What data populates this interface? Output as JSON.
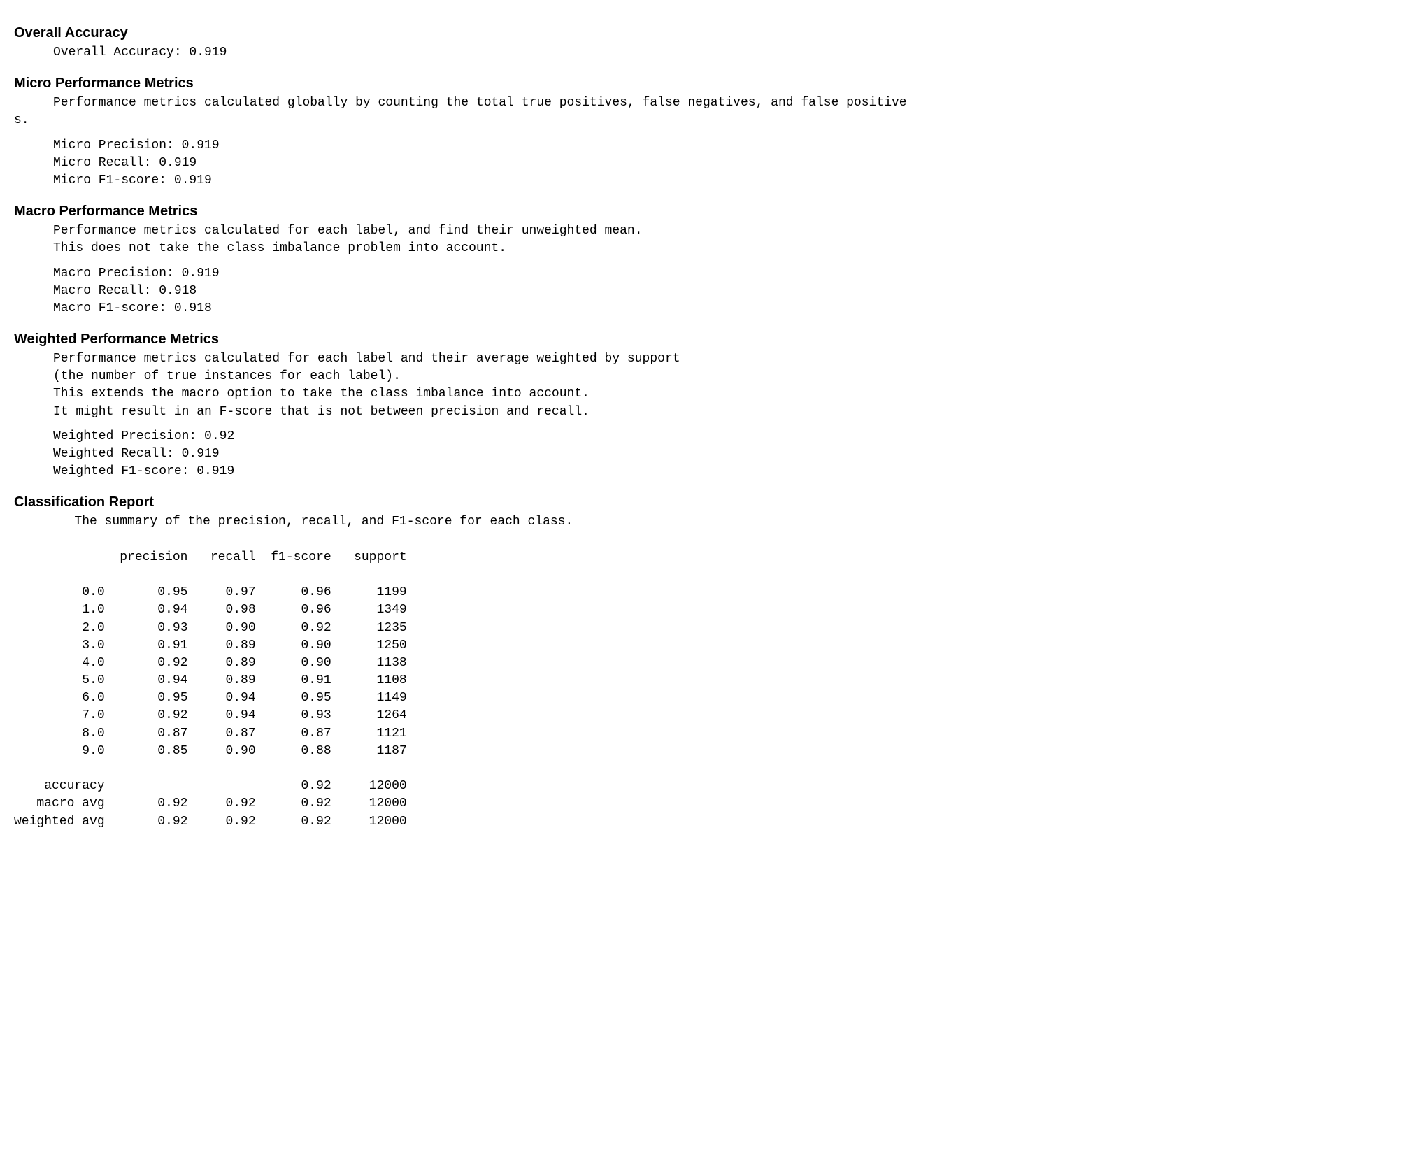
{
  "overall": {
    "heading": "Overall Accuracy",
    "line": "Overall Accuracy: 0.919"
  },
  "micro": {
    "heading": "Micro Performance Metrics",
    "desc": "Performance metrics calculated globally by counting the total true positives, false negatives, and false positive",
    "desc_wrap": "s.",
    "precision": "Micro Precision: 0.919",
    "recall": "Micro Recall: 0.919",
    "f1": "Micro F1-score: 0.919"
  },
  "macro": {
    "heading": "Macro Performance Metrics",
    "desc1": "Performance metrics calculated for each label, and find their unweighted mean.",
    "desc2": "This does not take the class imbalance problem into account.",
    "precision": "Macro Precision: 0.919",
    "recall": "Macro Recall: 0.918",
    "f1": "Macro F1-score: 0.918"
  },
  "weighted": {
    "heading": "Weighted Performance Metrics",
    "desc1": "Performance metrics calculated for each label and their average weighted by support",
    "desc2": "(the number of true instances for each label).",
    "desc3": "This extends the macro option to take the class imbalance into account.",
    "desc4": "It might result in an F-score that is not between precision and recall.",
    "precision": "Weighted Precision: 0.92",
    "recall": "Weighted Recall: 0.919",
    "f1": "Weighted F1-score: 0.919"
  },
  "report": {
    "heading": "Classification Report",
    "intro": "The summary of the precision, recall, and F1-score for each class.",
    "columns": [
      "precision",
      "recall",
      "f1-score",
      "support"
    ],
    "col_widths": {
      "label": 12,
      "precision": 11,
      "recall": 9,
      "f1": 10,
      "support": 10
    },
    "rows": [
      {
        "label": "0.0",
        "precision": "0.95",
        "recall": "0.97",
        "f1": "0.96",
        "support": "1199"
      },
      {
        "label": "1.0",
        "precision": "0.94",
        "recall": "0.98",
        "f1": "0.96",
        "support": "1349"
      },
      {
        "label": "2.0",
        "precision": "0.93",
        "recall": "0.90",
        "f1": "0.92",
        "support": "1235"
      },
      {
        "label": "3.0",
        "precision": "0.91",
        "recall": "0.89",
        "f1": "0.90",
        "support": "1250"
      },
      {
        "label": "4.0",
        "precision": "0.92",
        "recall": "0.89",
        "f1": "0.90",
        "support": "1138"
      },
      {
        "label": "5.0",
        "precision": "0.94",
        "recall": "0.89",
        "f1": "0.91",
        "support": "1108"
      },
      {
        "label": "6.0",
        "precision": "0.95",
        "recall": "0.94",
        "f1": "0.95",
        "support": "1149"
      },
      {
        "label": "7.0",
        "precision": "0.92",
        "recall": "0.94",
        "f1": "0.93",
        "support": "1264"
      },
      {
        "label": "8.0",
        "precision": "0.87",
        "recall": "0.87",
        "f1": "0.87",
        "support": "1121"
      },
      {
        "label": "9.0",
        "precision": "0.85",
        "recall": "0.90",
        "f1": "0.88",
        "support": "1187"
      }
    ],
    "summary": [
      {
        "label": "accuracy",
        "precision": "",
        "recall": "",
        "f1": "0.92",
        "support": "12000"
      },
      {
        "label": "macro avg",
        "precision": "0.92",
        "recall": "0.92",
        "f1": "0.92",
        "support": "12000"
      },
      {
        "label": "weighted avg",
        "precision": "0.92",
        "recall": "0.92",
        "f1": "0.92",
        "support": "12000"
      }
    ]
  },
  "style": {
    "background_color": "#ffffff",
    "text_color": "#000000",
    "heading_fontsize": 20,
    "mono_fontsize": 18
  }
}
